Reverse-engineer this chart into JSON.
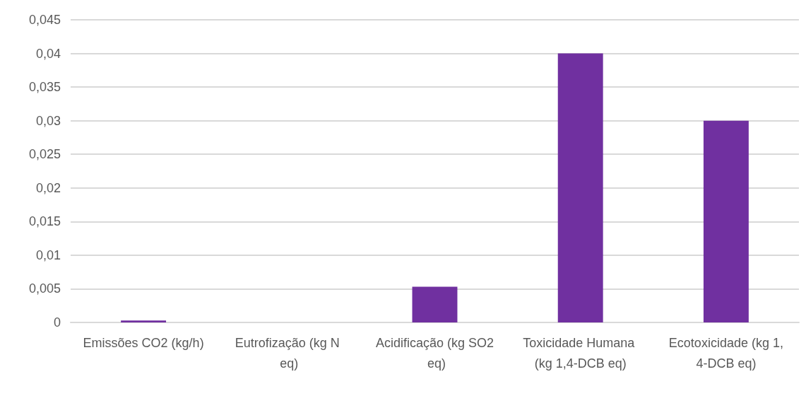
{
  "chart_data": {
    "type": "bar",
    "categories": [
      "Emissões CO2 (kg/h)",
      "Eutrofização (kg N eq)",
      "Acidificação (kg SO2 eq)",
      "Toxicidade Humana (kg 1,4-DCB eq)",
      "Ecotoxicidade (kg 1,4-DCB eq)"
    ],
    "values": [
      0.0003,
      0,
      0.0053,
      0.04,
      0.03
    ],
    "color": "#7030a0",
    "ylim": [
      0,
      0.045
    ],
    "yticks": [
      {
        "value": 0,
        "label": "0"
      },
      {
        "value": 0.005,
        "label": "0,005"
      },
      {
        "value": 0.01,
        "label": "0,01"
      },
      {
        "value": 0.015,
        "label": "0,015"
      },
      {
        "value": 0.02,
        "label": "0,02"
      },
      {
        "value": 0.025,
        "label": "0,025"
      },
      {
        "value": 0.03,
        "label": "0,03"
      },
      {
        "value": 0.035,
        "label": "0,035"
      },
      {
        "value": 0.04,
        "label": "0,04"
      },
      {
        "value": 0.045,
        "label": "0,045"
      }
    ],
    "grid": true
  }
}
